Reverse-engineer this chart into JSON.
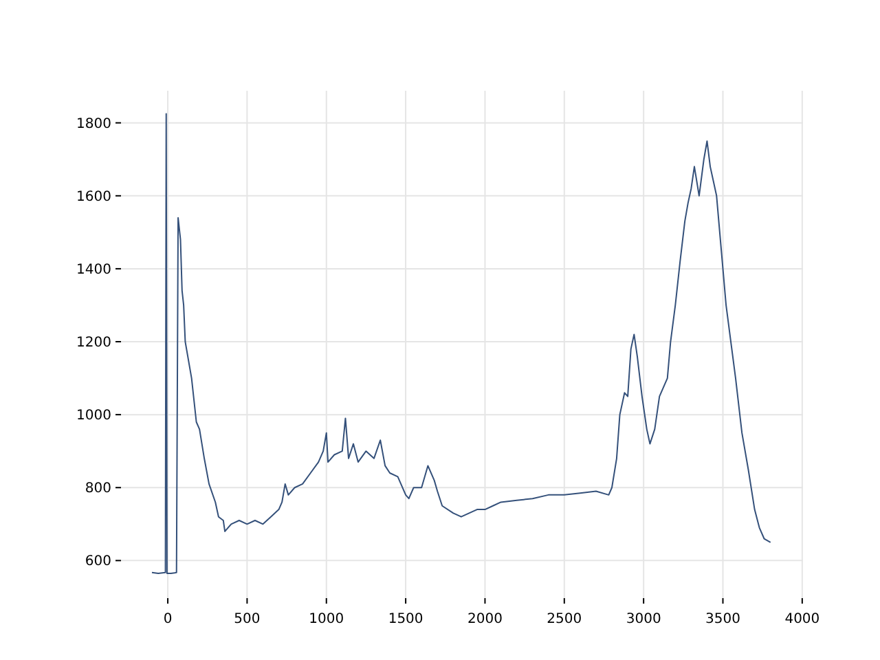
{
  "chart_data": {
    "type": "line",
    "xlim": [
      -295,
      4005
    ],
    "ylim": [
      497,
      1888
    ],
    "xticks": [
      0,
      500,
      1000,
      1500,
      2000,
      2500,
      3000,
      3500,
      4000
    ],
    "yticks": [
      600,
      800,
      1000,
      1200,
      1400,
      1600,
      1800
    ],
    "grid": true,
    "series": [
      {
        "color": "#34507a",
        "x": [
          -100,
          -60,
          -15,
          -10,
          -5,
          20,
          55,
          65,
          80,
          90,
          100,
          110,
          150,
          180,
          200,
          230,
          260,
          300,
          320,
          350,
          360,
          400,
          450,
          500,
          550,
          600,
          650,
          700,
          720,
          740,
          760,
          800,
          850,
          900,
          950,
          980,
          1000,
          1010,
          1050,
          1100,
          1120,
          1140,
          1170,
          1200,
          1250,
          1300,
          1340,
          1370,
          1400,
          1450,
          1500,
          1520,
          1550,
          1600,
          1640,
          1680,
          1700,
          1730,
          1800,
          1850,
          1900,
          1950,
          2000,
          2050,
          2100,
          2200,
          2300,
          2400,
          2500,
          2600,
          2700,
          2780,
          2800,
          2830,
          2850,
          2880,
          2900,
          2920,
          2940,
          2960,
          2990,
          3020,
          3040,
          3070,
          3100,
          3150,
          3170,
          3200,
          3230,
          3260,
          3280,
          3300,
          3320,
          3350,
          3380,
          3400,
          3420,
          3440,
          3460,
          3490,
          3520,
          3550,
          3580,
          3620,
          3660,
          3700,
          3730,
          3760,
          3800
        ],
        "values": [
          567,
          565,
          567,
          1825,
          565,
          565,
          567,
          1540,
          1480,
          1340,
          1300,
          1200,
          1100,
          980,
          960,
          880,
          810,
          760,
          720,
          710,
          680,
          700,
          710,
          700,
          710,
          700,
          720,
          740,
          760,
          810,
          780,
          800,
          810,
          840,
          870,
          900,
          950,
          870,
          890,
          900,
          990,
          880,
          920,
          870,
          900,
          880,
          930,
          860,
          840,
          830,
          780,
          770,
          800,
          800,
          860,
          820,
          790,
          750,
          730,
          720,
          730,
          740,
          740,
          750,
          760,
          765,
          770,
          780,
          780,
          785,
          790,
          780,
          800,
          880,
          1000,
          1060,
          1050,
          1180,
          1220,
          1160,
          1050,
          960,
          920,
          960,
          1050,
          1100,
          1200,
          1300,
          1420,
          1530,
          1580,
          1620,
          1680,
          1600,
          1700,
          1750,
          1680,
          1640,
          1600,
          1450,
          1300,
          1200,
          1100,
          950,
          850,
          740,
          690,
          660,
          650
        ]
      }
    ]
  }
}
